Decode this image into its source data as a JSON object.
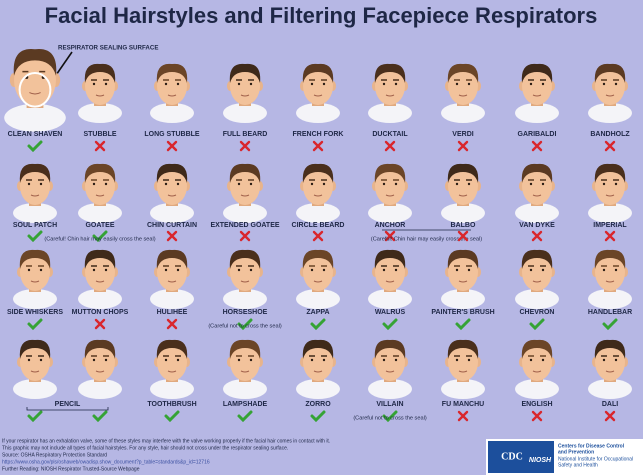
{
  "title": "Facial Hairstyles and Filtering Facepiece Respirators",
  "callout": "RESPIRATOR SEALING SURFACE",
  "rows": [
    [
      {
        "label": "CLEAN SHAVEN",
        "ok": true
      },
      {
        "label": "STUBBLE",
        "ok": false
      },
      {
        "label": "LONG STUBBLE",
        "ok": false
      },
      {
        "label": "FULL BEARD",
        "ok": false
      },
      {
        "label": "FRENCH FORK",
        "ok": false
      },
      {
        "label": "DUCKTAIL",
        "ok": false
      },
      {
        "label": "VERDI",
        "ok": false
      },
      {
        "label": "GARIBALDI",
        "ok": false
      },
      {
        "label": "BANDHOLZ",
        "ok": false
      }
    ],
    [
      {
        "label": "SOUL PATCH",
        "ok": true
      },
      {
        "label": "GOATEE",
        "ok": true,
        "note": "(Careful! Chin hair may easily cross the seal)"
      },
      {
        "label": "CHIN CURTAIN",
        "ok": false
      },
      {
        "label": "EXTENDED GOATEE",
        "ok": false
      },
      {
        "label": "CIRCLE BEARD",
        "ok": false
      },
      {
        "label": "ANCHOR",
        "ok": false,
        "note": "(Careful! Chin hair may easily cross the seal)"
      },
      {
        "label": "BALBO",
        "ok": false
      },
      {
        "label": "VAN DYKE",
        "ok": false
      },
      {
        "label": "IMPERIAL",
        "ok": false
      }
    ],
    [
      {
        "label": "SIDE WHISKERS",
        "ok": true
      },
      {
        "label": "MUTTON CHOPS",
        "ok": false
      },
      {
        "label": "HULIHEE",
        "ok": false
      },
      {
        "label": "HORSESHOE",
        "ok": true,
        "note": "(Careful not to cross the seal)"
      },
      {
        "label": "ZAPPA",
        "ok": true
      },
      {
        "label": "WALRUS",
        "ok": true
      },
      {
        "label": "PAINTER'S BRUSH",
        "ok": true
      },
      {
        "label": "CHEVRON",
        "ok": true
      },
      {
        "label": "HANDLEBAR",
        "ok": true
      }
    ],
    [
      {
        "label": "PENCIL",
        "ok": [
          true,
          true
        ]
      },
      {
        "label": "TOOTHBRUSH",
        "ok": true
      },
      {
        "label": "LAMPSHADE",
        "ok": true
      },
      {
        "label": "ZORRO",
        "ok": true
      },
      {
        "label": "VILLAIN",
        "ok": true,
        "note": "(Careful not to cross the seal)"
      },
      {
        "label": "FU MANCHU",
        "ok": false
      },
      {
        "label": "ENGLISH",
        "ok": false
      },
      {
        "label": "DALI",
        "ok": false
      }
    ]
  ],
  "footer": [
    "If your respirator has an exhalation valve, some of these styles may interfere with the valve working properly if the facial hair comes in contact with it.",
    "This graphic may not include all types of facial hairstyles. For any style, hair should not cross under the respirator sealing surface.",
    "Source: OSHA Respiratory Protection Standard",
    "https://www.osha.gov/pls/oshaweb/owadisp.show_document?p_table=standards&p_id=12716",
    "Further Reading: NIOSH Respirator Trusted-Source Webpage"
  ],
  "logo": {
    "cdc": "CDC",
    "niosh": "NIOSH",
    "line1": "Centers for Disease Control",
    "line2": "and Prevention",
    "line3": "National Institute for Occupational",
    "line4": "Safety and Health"
  }
}
